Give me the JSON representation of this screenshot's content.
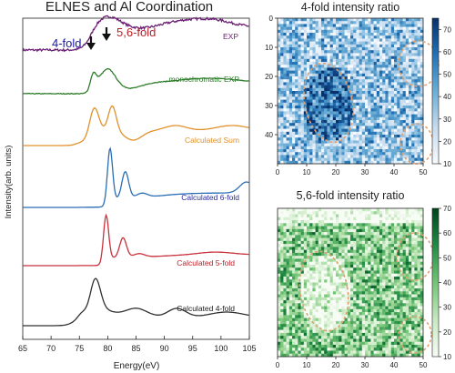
{
  "chart_data": [
    {
      "type": "line",
      "title": "ELNES and Al Coordination",
      "xlabel": "Energy(eV)",
      "ylabel": "Intensity(arb. units)",
      "xlim": [
        65,
        105
      ],
      "x_ticks": [
        65,
        70,
        75,
        80,
        85,
        90,
        95,
        100,
        105
      ],
      "y_ticks": false,
      "grid": false,
      "annotations": [
        {
          "text": "4-fold",
          "color": "#1a1aa0",
          "arrow_at_eV": 77.8
        },
        {
          "text": "5,6-fold",
          "color": "#b81e28",
          "arrow_at_eV": 80.3
        }
      ],
      "series": [
        {
          "name": "EXP",
          "color": "#6a1f72",
          "label_color": "#6a1f72"
        },
        {
          "name": "monochromatic EXP",
          "color": "#2e7d2a",
          "label_color": "#2e7d2a"
        },
        {
          "name": "Calculated Sum",
          "color": "#e0902a",
          "label_color": "#e0902a"
        },
        {
          "name": "Calculated 6-fold",
          "color": "#2a6db5",
          "label_color": "#2a2aa0"
        },
        {
          "name": "Calculated 5-fold",
          "color": "#c8323c",
          "label_color": "#b81e28"
        },
        {
          "name": "Calculated 4-fold",
          "color": "#303030",
          "label_color": "#202020"
        }
      ]
    },
    {
      "type": "heatmap",
      "title": "4-fold intensity ratio",
      "colormap": "Blues",
      "xlim": [
        0,
        50
      ],
      "ylim": [
        50,
        0
      ],
      "x_ticks": [
        0,
        10,
        20,
        30,
        40,
        50
      ],
      "y_ticks": [
        0,
        10,
        20,
        30,
        40
      ],
      "colorbar_ticks": [
        10,
        20,
        30,
        40,
        50,
        60,
        70
      ],
      "colorbar_range": [
        10,
        75
      ],
      "overlay": "dashed orange ellipses"
    },
    {
      "type": "heatmap",
      "title": "5,6-fold intensity ratio",
      "colormap": "Greens",
      "xlim": [
        0,
        50
      ],
      "x_ticks": [
        0,
        10,
        20,
        30,
        40,
        50
      ],
      "colorbar_ticks": [
        10,
        20,
        30,
        40,
        50,
        60,
        70
      ],
      "colorbar_range": [
        10,
        70
      ],
      "overlay": "dashed orange ellipses"
    }
  ]
}
